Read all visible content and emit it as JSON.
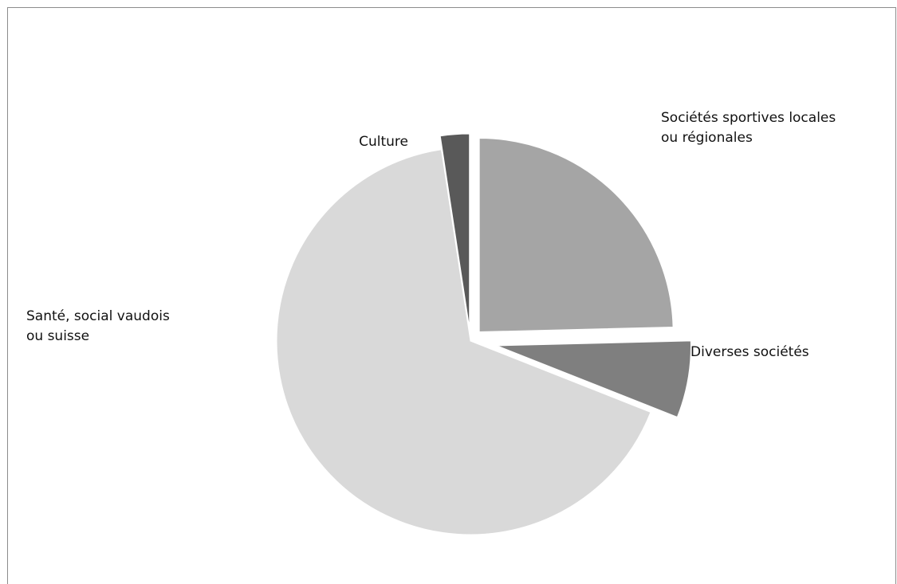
{
  "chart_data": {
    "type": "pie",
    "title": "",
    "slices": [
      {
        "label_lines": [
          "Sociétés sportives locales",
          "ou régionales"
        ],
        "value": 24.6,
        "color": "#a5a5a5"
      },
      {
        "label_lines": [
          "Diverses sociétés"
        ],
        "value": 6.4,
        "color": "#7f7f7f"
      },
      {
        "label_lines": [
          "Santé, social vaudois",
          "ou suisse"
        ],
        "value": 66.6,
        "color": "#d9d9d9"
      },
      {
        "label_lines": [
          "Culture"
        ],
        "value": 2.4,
        "color": "#595959"
      }
    ],
    "start_angle_deg": 0,
    "direction": "clockwise",
    "exploded": true,
    "legend": "none"
  }
}
